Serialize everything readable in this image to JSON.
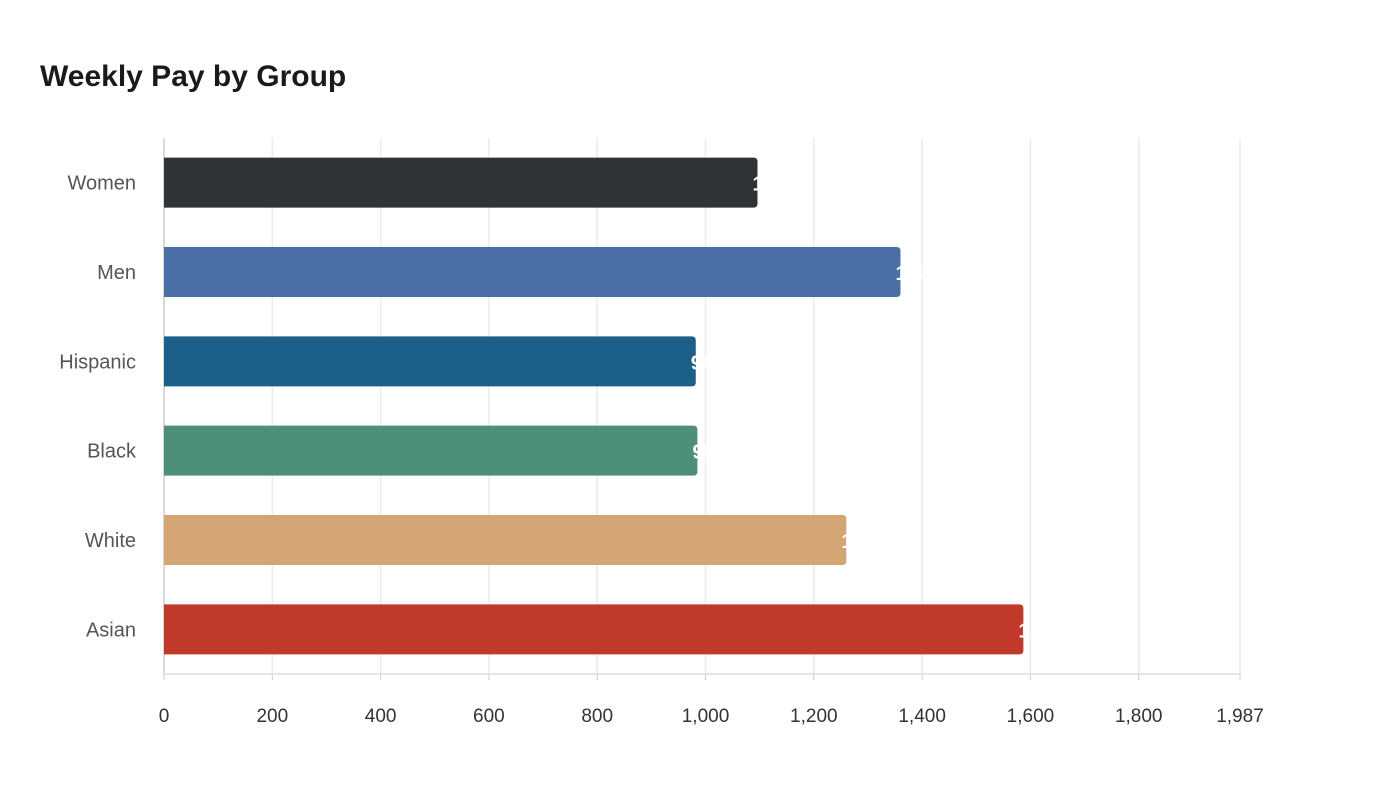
{
  "chart_data": {
    "type": "bar",
    "orientation": "horizontal",
    "title": "Weekly Pay by Group",
    "xlabel": "",
    "ylabel": "",
    "categories": [
      "Women",
      "Men",
      "Hispanic",
      "Black",
      "White",
      "Asian"
    ],
    "values": [
      1096,
      1360,
      982,
      985,
      1260,
      1587
    ],
    "value_labels": [
      "1,096",
      "1,360",
      "982",
      "985",
      "1,260",
      "1,587"
    ],
    "colors": [
      "#2e3336",
      "#4a6fa5",
      "#1a6088",
      "#4e8f7a",
      "#d4a574",
      "#c0392b"
    ],
    "xlim": [
      0,
      1987
    ],
    "xticks": [
      0,
      200,
      400,
      600,
      800,
      1000,
      1200,
      1400,
      1600,
      1800,
      1987
    ],
    "xtick_labels": [
      "0",
      "200",
      "400",
      "600",
      "800",
      "1,000",
      "1,200",
      "1,400",
      "1,600",
      "1,800",
      "1,987"
    ],
    "grid": true,
    "legend": "none"
  }
}
